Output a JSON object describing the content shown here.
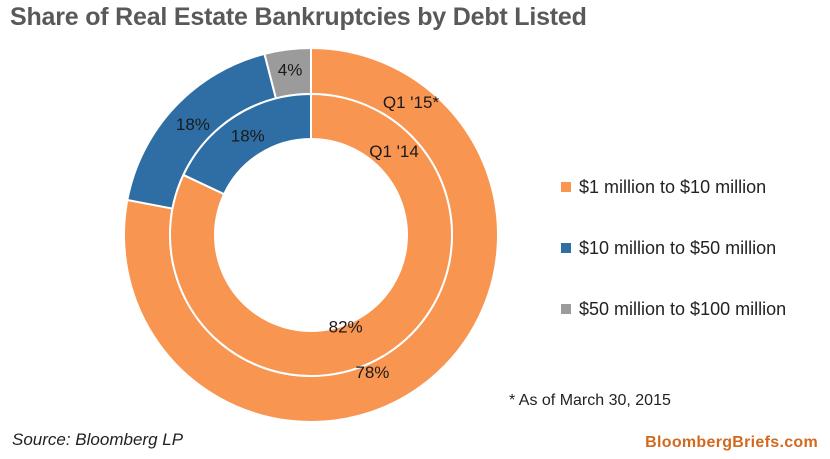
{
  "title": "Share of Real Estate Bankruptcies by Debt Listed",
  "chart_data": {
    "type": "pie",
    "title": "Share of Real Estate Bankruptcies by Debt Listed",
    "categories": [
      "$1 million to $10 million",
      "$10 million to $50 million",
      "$50 million to $100 million"
    ],
    "series": [
      {
        "name": "Q1 '15*",
        "ring": "outer",
        "values": [
          78,
          18,
          4
        ]
      },
      {
        "name": "Q1 '14",
        "ring": "inner",
        "values": [
          82,
          18,
          0
        ]
      }
    ],
    "value_labels": {
      "outer": [
        "78%",
        "18%",
        "4%"
      ],
      "inner": [
        "82%",
        "18%",
        ""
      ]
    },
    "colors": [
      "#f79551",
      "#2f6ea4",
      "#9b9b9b"
    ],
    "legend_position": "right"
  },
  "legend": {
    "items": [
      {
        "label": "$1 million to $10 million",
        "color": "#f79551"
      },
      {
        "label": "$10 million to $50 million",
        "color": "#2f6ea4"
      },
      {
        "label": "$50 million to $100 million",
        "color": "#9b9b9b"
      }
    ]
  },
  "footnote": "* As of March 30, 2015",
  "source": "Source: Bloomberg LP",
  "brand": "BloombergBriefs.com"
}
